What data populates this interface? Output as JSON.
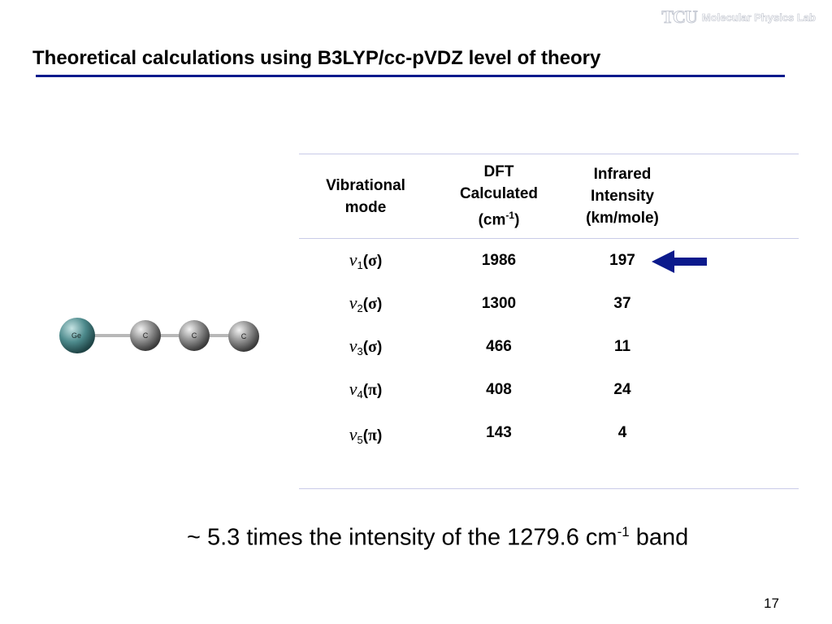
{
  "header": {
    "logo_mark": "TCU",
    "logo_text": "Molecular Physics Lab"
  },
  "slide": {
    "title": "Theoretical calculations using B3LYP/cc-pVDZ level of theory",
    "page_number": "17"
  },
  "molecule": {
    "atoms": [
      "Ge",
      "C",
      "C",
      "C"
    ],
    "colors": {
      "ge": "#4d8a8c",
      "c": "#8a8a8a",
      "bond": "#b8b8b8"
    }
  },
  "table": {
    "headers": {
      "mode": [
        "Vibrational",
        "mode"
      ],
      "dft": [
        "DFT",
        "Calculated",
        "(cm",
        "-1",
        ")"
      ],
      "intensity": [
        "Infrared",
        "Intensity",
        "(km/mole)"
      ]
    },
    "rows": [
      {
        "nu": "ν",
        "index": "1",
        "symmetry": "σ",
        "dft": "1986",
        "intensity": "197"
      },
      {
        "nu": "ν",
        "index": "2",
        "symmetry": "σ",
        "dft": "1300",
        "intensity": "37"
      },
      {
        "nu": "ν",
        "index": "3",
        "symmetry": "σ",
        "dft": "466",
        "intensity": "11"
      },
      {
        "nu": "ν",
        "index": "4",
        "symmetry": "π",
        "dft": "408",
        "intensity": "24"
      },
      {
        "nu": "ν",
        "index": "5",
        "symmetry": "π",
        "dft": "143",
        "intensity": "4"
      }
    ],
    "rule_color": "#c9cbe8"
  },
  "annotation": {
    "arrow_color": "#0b1a8c",
    "note_prefix": "~ 5.3 times the intensity of the 1279.6 cm",
    "note_superscript": "-1",
    "note_suffix": " band"
  }
}
